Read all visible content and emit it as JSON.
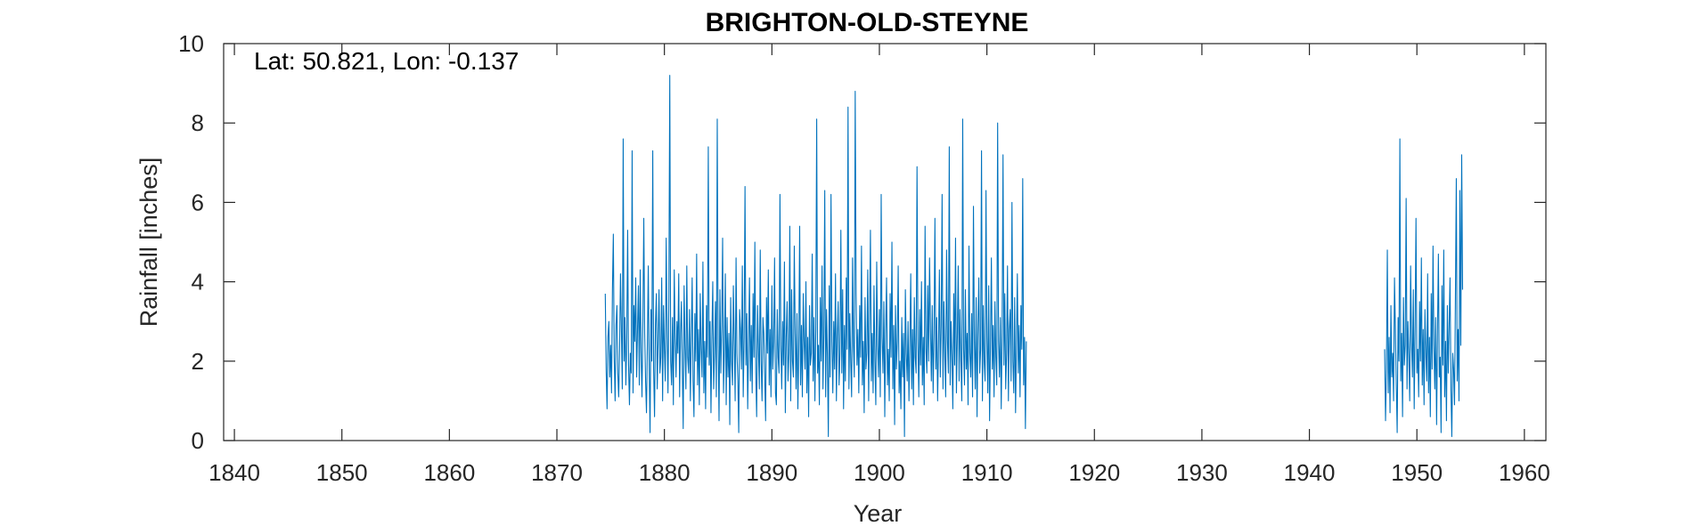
{
  "chart_data": {
    "type": "line",
    "title": "BRIGHTON-OLD-STEYNE",
    "annotation": "Lat: 50.821, Lon: -0.137",
    "xlabel": "Year",
    "ylabel": "Rainfall [inches]",
    "xlim": [
      1839,
      1962
    ],
    "ylim": [
      0,
      10
    ],
    "x_ticks": [
      1840,
      1850,
      1860,
      1870,
      1880,
      1890,
      1900,
      1910,
      1920,
      1930,
      1940,
      1950,
      1960
    ],
    "y_ticks": [
      0,
      2,
      4,
      6,
      8,
      10
    ],
    "grid": false,
    "series": [
      {
        "color": "#0072BD",
        "sampling": "monthly",
        "segments": [
          {
            "start_year": 1874.5,
            "values": [
              3.7,
              1.8,
              0.8,
              2.6,
              3.0,
              1.6,
              2.4,
              1.2,
              3.8,
              5.2,
              2.1,
              1.0,
              2.9,
              3.4,
              1.7,
              1.1,
              2.3,
              4.2,
              2.8,
              1.3,
              7.6,
              2.0,
              3.1,
              1.4,
              2.6,
              5.3,
              1.9,
              0.9,
              2.2,
              1.7,
              7.3,
              1.2,
              3.4,
              2.5,
              4.1,
              1.6,
              2.8,
              3.9,
              1.4,
              4.3,
              2.2,
              1.1,
              3.0,
              5.6,
              2.7,
              1.5,
              0.7,
              2.4,
              4.4,
              1.9,
              0.2,
              3.3,
              2.0,
              7.3,
              1.8,
              0.6,
              2.9,
              3.7,
              1.3,
              2.5,
              3.8,
              1.7,
              2.1,
              4.1,
              1.0,
              3.4,
              2.3,
              1.5,
              5.1,
              2.8,
              1.2,
              3.6,
              9.2,
              2.0,
              1.4,
              3.1,
              0.9,
              4.3,
              2.6,
              1.6,
              3.0,
              2.2,
              4.2,
              1.1,
              2.7,
              3.5,
              1.8,
              0.3,
              3.9,
              2.4,
              1.3,
              4.4,
              2.1,
              1.7,
              3.3,
              1.0,
              2.6,
              4.1,
              1.5,
              0.6,
              3.2,
              2.0,
              4.7,
              1.4,
              2.8,
              0.9,
              3.7,
              2.3,
              1.6,
              4.5,
              1.2,
              2.5,
              0.8,
              3.4,
              2.1,
              7.4,
              1.9,
              3.0,
              0.7,
              2.6,
              4.0,
              1.3,
              2.2,
              3.5,
              1.1,
              8.1,
              2.4,
              0.5,
              3.8,
              1.7,
              2.9,
              5.1,
              1.2,
              2.3,
              4.2,
              0.9,
              3.1,
              1.6,
              2.7,
              0.4,
              3.6,
              2.0,
              1.4,
              3.9,
              2.5,
              1.0,
              4.6,
              2.2,
              1.5,
              0.2,
              3.3,
              2.8,
              1.8,
              4.4,
              1.1,
              2.6,
              6.4,
              1.9,
              3.2,
              0.8,
              2.4,
              4.1,
              1.5,
              2.9,
              1.2,
              3.7,
              2.1,
              5.0,
              1.7,
              0.6,
              3.4,
              2.3,
              1.3,
              4.8,
              2.0,
              1.0,
              3.1,
              2.7,
              1.6,
              0.5,
              3.6,
              2.2,
              4.3,
              1.4,
              2.8,
              1.1,
              3.9,
              1.8,
              2.5,
              4.6,
              1.2,
              0.9,
              3.3,
              2.1,
              1.7,
              6.2,
              2.4,
              1.3,
              3.0,
              1.9,
              4.5,
              0.7,
              2.6,
              3.5,
              1.5,
              2.2,
              5.4,
              1.0,
              3.8,
              2.0,
              1.6,
              4.9,
              2.7,
              1.3,
              3.2,
              0.8,
              2.3,
              5.4,
              1.4,
              2.9,
              1.1,
              3.7,
              2.5,
              1.8,
              4.0,
              1.2,
              2.6,
              0.6,
              3.4,
              1.9,
              2.2,
              4.7,
              1.5,
              3.1,
              1.0,
              2.8,
              8.1,
              1.7,
              2.4,
              0.9,
              3.6,
              2.0,
              4.4,
              1.3,
              2.7,
              6.3,
              1.1,
              3.3,
              2.1,
              0.1,
              3.9,
              1.6,
              6.2,
              2.5,
              1.2,
              3.0,
              1.8,
              4.2,
              1.0,
              2.6,
              3.5,
              1.4,
              2.2,
              5.3,
              1.7,
              3.8,
              0.8,
              2.9,
              1.5,
              4.1,
              2.3,
              8.4,
              1.3,
              3.2,
              2.0,
              1.1,
              4.6,
              2.4,
              1.6,
              8.8,
              3.7,
              1.9,
              2.8,
              1.2,
              3.4,
              2.1,
              4.9,
              1.4,
              2.5,
              0.7,
              3.6,
              1.8,
              2.2,
              4.3,
              1.0,
              3.0,
              5.3,
              1.5,
              2.7,
              1.2,
              3.9,
              2.0,
              0.9,
              4.5,
              2.4,
              1.6,
              3.3,
              1.1,
              6.2,
              2.6,
              1.7,
              3.5,
              0.6,
              2.8,
              4.1,
              1.4,
              2.3,
              1.0,
              3.7,
              2.1,
              5.0,
              1.3,
              2.9,
              0.4,
              3.4,
              1.8,
              2.5,
              4.4,
              1.2,
              2.0,
              0.8,
              3.1,
              1.6,
              2.7,
              0.1,
              3.8,
              2.2,
              1.5,
              3.0,
              1.0,
              2.4,
              4.2,
              1.3,
              2.8,
              0.9,
              3.6,
              2.1,
              1.7,
              6.9,
              2.5,
              1.1,
              3.3,
              1.9,
              4.0,
              1.4,
              2.6,
              0.9,
              5.4,
              2.3,
              1.7,
              3.9,
              2.0,
              4.6,
              2.8,
              1.5,
              3.4,
              1.2,
              2.7,
              5.6,
              1.8,
              3.1,
              1.0,
              2.4,
              4.3,
              1.6,
              2.9,
              6.2,
              1.3,
              3.5,
              2.2,
              1.1,
              4.8,
              2.5,
              1.7,
              7.4,
              1.4,
              3.0,
              2.1,
              0.8,
              3.7,
              1.9,
              5.1,
              1.2,
              2.6,
              4.4,
              1.5,
              3.3,
              2.0,
              1.0,
              8.1,
              2.3,
              1.4,
              3.8,
              1.8,
              2.7,
              0.9,
              4.9,
              2.2,
              1.6,
              3.2,
              1.1,
              5.9,
              2.5,
              1.3,
              3.6,
              0.6,
              2.8,
              4.1,
              1.7,
              2.3,
              7.3,
              1.0,
              3.4,
              2.0,
              1.5,
              6.3,
              2.6,
              1.2,
              3.9,
              0.5,
              2.4,
              4.6,
              1.8,
              2.9,
              1.1,
              3.5,
              2.1,
              1.4,
              8.0,
              2.5,
              1.6,
              3.1,
              0.8,
              2.7,
              7.2,
              1.9,
              3.7,
              1.3,
              2.2,
              4.4,
              1.0,
              2.8,
              3.3,
              1.5,
              6.0,
              2.0,
              1.2,
              3.6,
              0.7,
              2.4,
              4.2,
              1.7,
              2.9,
              1.1,
              3.4,
              2.3,
              6.6,
              1.4,
              2.6,
              0.3,
              2.5
            ]
          },
          {
            "start_year": 1947.0,
            "values": [
              2.3,
              0.5,
              1.8,
              4.8,
              1.2,
              2.6,
              0.7,
              3.4,
              1.6,
              2.2,
              1.0,
              4.1,
              2.8,
              1.4,
              0.2,
              3.1,
              2.0,
              7.6,
              1.5,
              2.7,
              0.6,
              3.6,
              1.9,
              2.4,
              6.1,
              1.3,
              3.0,
              2.1,
              1.0,
              4.4,
              2.5,
              1.6,
              3.8,
              0.8,
              2.9,
              5.6,
              1.7,
              2.3,
              1.1,
              3.5,
              2.0,
              4.6,
              1.4,
              2.8,
              0.9,
              3.3,
              2.2,
              1.5,
              4.2,
              1.2,
              2.6,
              0.6,
              3.7,
              1.8,
              4.9,
              2.4,
              1.3,
              3.1,
              0.4,
              2.7,
              4.7,
              1.6,
              2.1,
              0.2,
              3.9,
              1.9,
              4.8,
              1.1,
              2.5,
              0.5,
              3.4,
              1.7,
              2.9,
              4.1,
              1.3,
              0.1,
              2.2,
              1.8,
              0.9,
              3.6,
              6.6,
              1.5,
              2.8,
              1.0,
              6.3,
              2.4,
              7.2,
              3.8
            ]
          }
        ]
      }
    ]
  }
}
